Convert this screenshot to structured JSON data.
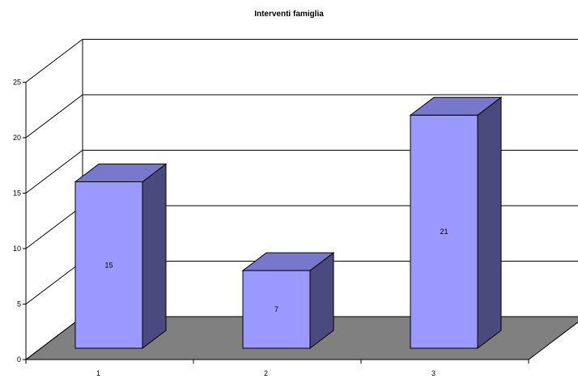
{
  "chart_data": {
    "type": "bar",
    "title": "Interventi famiglia",
    "xlabel": "",
    "ylabel": "",
    "categories": [
      "1",
      "2",
      "3"
    ],
    "values": [
      15,
      7,
      21
    ],
    "ylim": [
      0,
      25
    ],
    "yticks": [
      0,
      5,
      10,
      15,
      20,
      25
    ],
    "grid": true,
    "legend": "none",
    "colors": {
      "bar_front": "#9999FF",
      "bar_top": "#7777CC",
      "bar_side": "#4A4A7E",
      "floor": "#808080",
      "gridline": "#000000",
      "background": "#FFFFFF"
    }
  }
}
